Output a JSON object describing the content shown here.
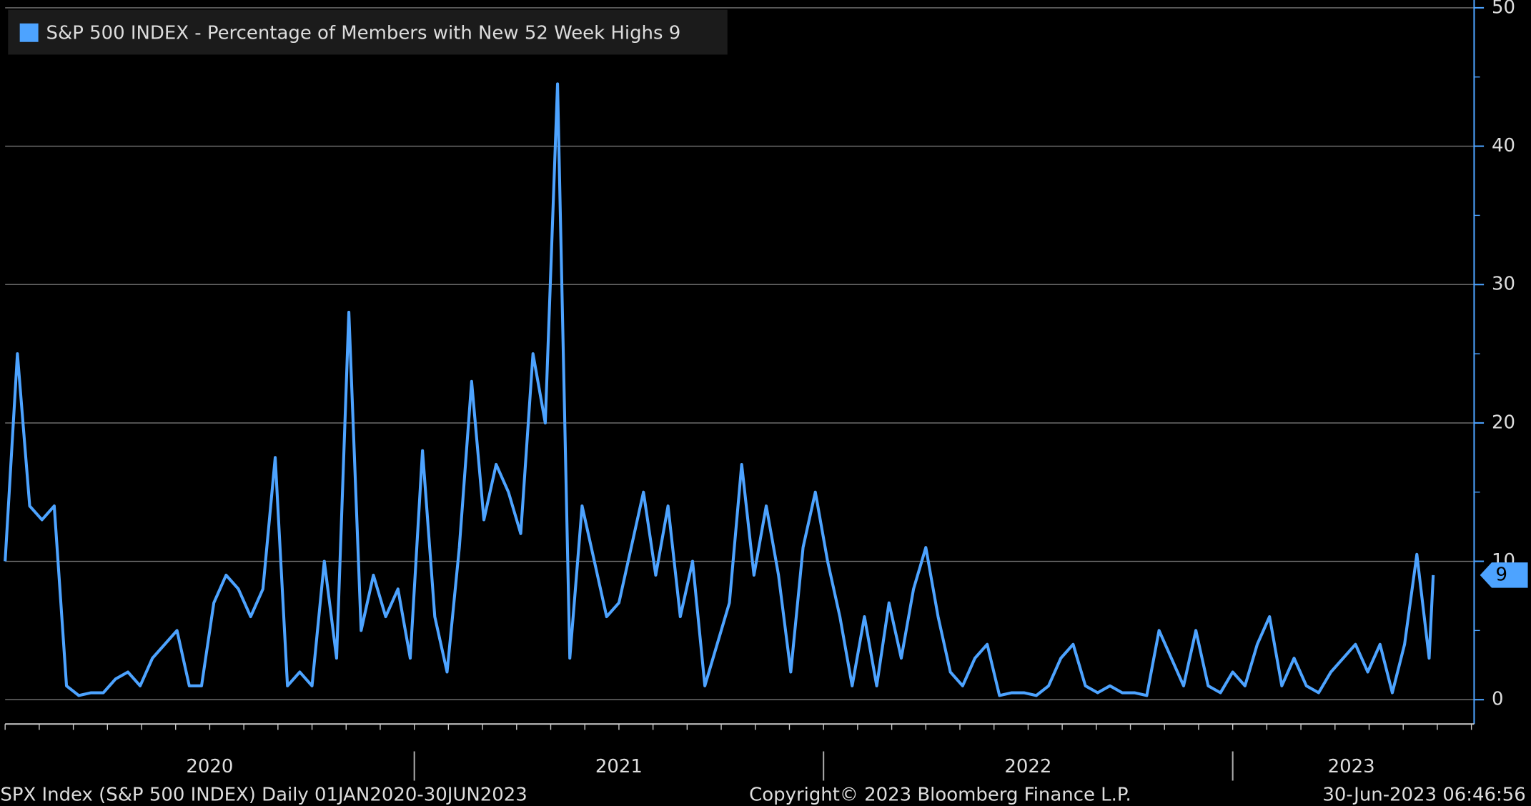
{
  "chart_data": {
    "type": "line",
    "series": [
      {
        "name": "S&P 500 INDEX - Percentage of Members with New 52 Week Highs",
        "color": "#4da3ff",
        "values": [
          10,
          25,
          14,
          13,
          14,
          1,
          0.3,
          0.5,
          0.5,
          1.5,
          2,
          1,
          3,
          4,
          5,
          1,
          1,
          7,
          9,
          8,
          6,
          8,
          17.5,
          1,
          2,
          1,
          10,
          3,
          28,
          5,
          9,
          6,
          8,
          3,
          18,
          6,
          2,
          11,
          23,
          13,
          17,
          15,
          12,
          25,
          20,
          44.5,
          3,
          14,
          10,
          6,
          7,
          11,
          15,
          9,
          14,
          6,
          10,
          1,
          4,
          7,
          17,
          9,
          14,
          9,
          2,
          11,
          15,
          10,
          6,
          1,
          6,
          1,
          7,
          3,
          8,
          11,
          6,
          2,
          1,
          3,
          4,
          0.3,
          0.5,
          0.5,
          0.3,
          1,
          3,
          4,
          1,
          0.5,
          1,
          0.5,
          0.5,
          0.3,
          5,
          3,
          1,
          5,
          1,
          0.5,
          2,
          1,
          4,
          6,
          1,
          3,
          1,
          0.5,
          2,
          3,
          4,
          2,
          4,
          0.5,
          4,
          10.5,
          3,
          9
        ]
      }
    ],
    "x": [
      2020.0,
      2020.03,
      2020.06,
      2020.09,
      2020.12,
      2020.15,
      2020.18,
      2020.21,
      2020.24,
      2020.27,
      2020.3,
      2020.33,
      2020.36,
      2020.39,
      2020.42,
      2020.45,
      2020.48,
      2020.51,
      2020.54,
      2020.57,
      2020.6,
      2020.63,
      2020.66,
      2020.69,
      2020.72,
      2020.75,
      2020.78,
      2020.81,
      2020.84,
      2020.87,
      2020.9,
      2020.93,
      2020.96,
      2020.99,
      2021.02,
      2021.05,
      2021.08,
      2021.11,
      2021.14,
      2021.17,
      2021.2,
      2021.23,
      2021.26,
      2021.29,
      2021.32,
      2021.35,
      2021.38,
      2021.41,
      2021.44,
      2021.47,
      2021.5,
      2021.53,
      2021.56,
      2021.59,
      2021.62,
      2021.65,
      2021.68,
      2021.71,
      2021.74,
      2021.77,
      2021.8,
      2021.83,
      2021.86,
      2021.89,
      2021.92,
      2021.95,
      2021.98,
      2022.01,
      2022.04,
      2022.07,
      2022.1,
      2022.13,
      2022.16,
      2022.19,
      2022.22,
      2022.25,
      2022.28,
      2022.31,
      2022.34,
      2022.37,
      2022.4,
      2022.43,
      2022.46,
      2022.49,
      2022.52,
      2022.55,
      2022.58,
      2022.61,
      2022.64,
      2022.67,
      2022.7,
      2022.73,
      2022.76,
      2022.79,
      2022.82,
      2022.85,
      2022.88,
      2022.91,
      2022.94,
      2022.97,
      2023.0,
      2023.03,
      2023.06,
      2023.09,
      2023.12,
      2023.15,
      2023.18,
      2023.21,
      2023.24,
      2023.27,
      2023.3,
      2023.33,
      2023.36,
      2023.39,
      2023.42,
      2023.45,
      2023.48,
      2023.49
    ],
    "xlim": [
      2020,
      2023.59
    ],
    "xticks": [
      {
        "value": 2020.5,
        "label": "2020"
      },
      {
        "value": 2021.5,
        "label": "2021"
      },
      {
        "value": 2022.5,
        "label": "2022"
      },
      {
        "value": 2023.29,
        "label": "2023"
      }
    ],
    "year_dividers": [
      2021,
      2022,
      2023
    ],
    "ylim": [
      -1.76,
      50
    ],
    "yticks": [
      0,
      10,
      20,
      30,
      40,
      50
    ],
    "grid": true,
    "footer_left": "SPX Index (S&P 500 INDEX)  Daily 01JAN2020-30JUN2023",
    "footer_center": "Copyright© 2023 Bloomberg Finance L.P.",
    "footer_right": "30-Jun-2023 06:46:56"
  }
}
